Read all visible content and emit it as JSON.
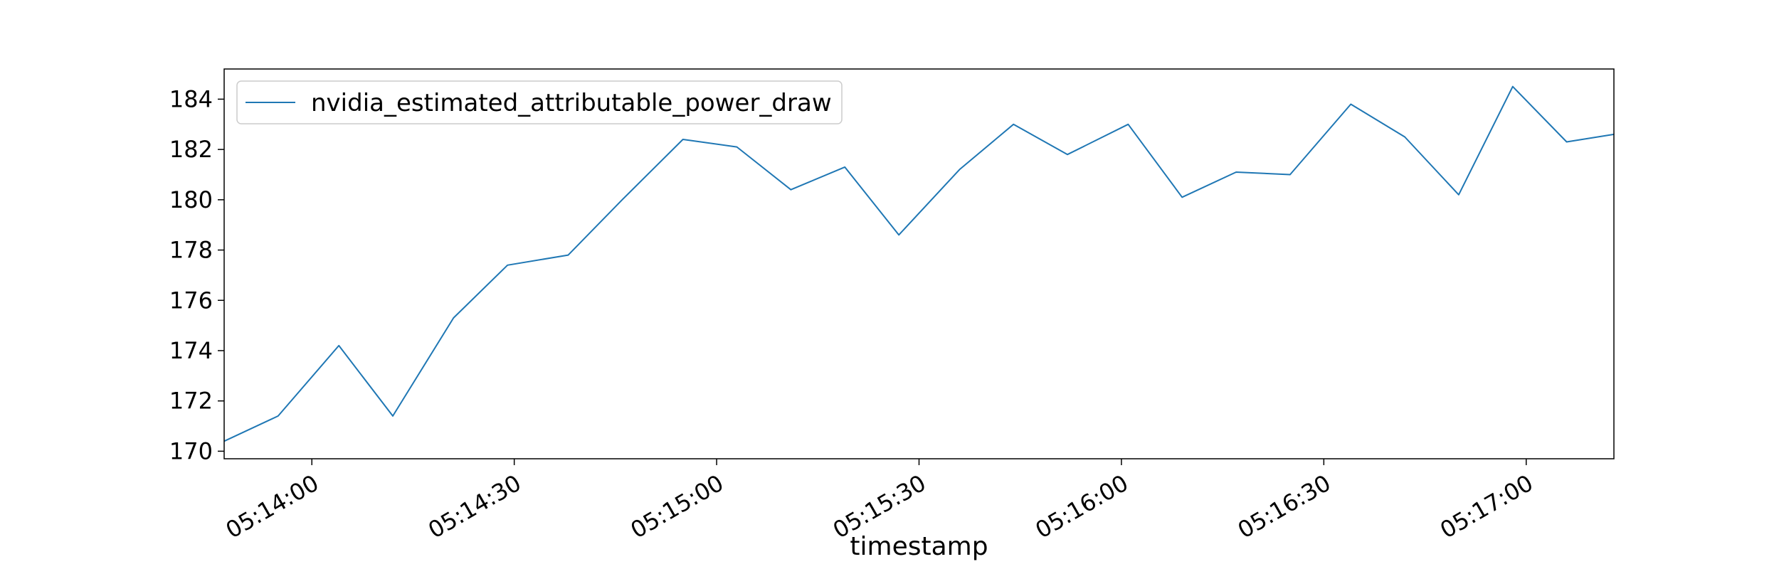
{
  "chart_data": {
    "type": "line",
    "xlabel": "timestamp",
    "ylabel": "",
    "title": "",
    "ylim": [
      169.7,
      185.2
    ],
    "yticks": [
      170,
      172,
      174,
      176,
      178,
      180,
      182,
      184
    ],
    "xlim": [
      "05:13:47",
      "05:17:13"
    ],
    "xticks": [
      "05:14:00",
      "05:14:30",
      "05:15:00",
      "05:15:30",
      "05:16:00",
      "05:16:30",
      "05:17:00"
    ],
    "legend": {
      "position": "top-left"
    },
    "series": [
      {
        "name": "nvidia_estimated_attributable_power_draw",
        "color": "#1f77b4",
        "x": [
          "05:13:47",
          "05:13:55",
          "05:14:04",
          "05:14:12",
          "05:14:21",
          "05:14:29",
          "05:14:38",
          "05:14:46",
          "05:14:55",
          "05:15:03",
          "05:15:11",
          "05:15:19",
          "05:15:27",
          "05:15:36",
          "05:15:44",
          "05:15:52",
          "05:16:01",
          "05:16:09",
          "05:16:17",
          "05:16:25",
          "05:16:34",
          "05:16:42",
          "05:16:50",
          "05:16:58",
          "05:17:06",
          "05:17:13"
        ],
        "y": [
          170.4,
          171.4,
          174.2,
          171.4,
          175.3,
          177.4,
          177.8,
          180.0,
          182.4,
          182.1,
          180.4,
          181.3,
          178.6,
          181.2,
          183.0,
          181.8,
          183.0,
          180.1,
          181.1,
          181.0,
          183.8,
          182.5,
          180.2,
          184.5,
          182.3,
          182.6
        ]
      }
    ]
  }
}
